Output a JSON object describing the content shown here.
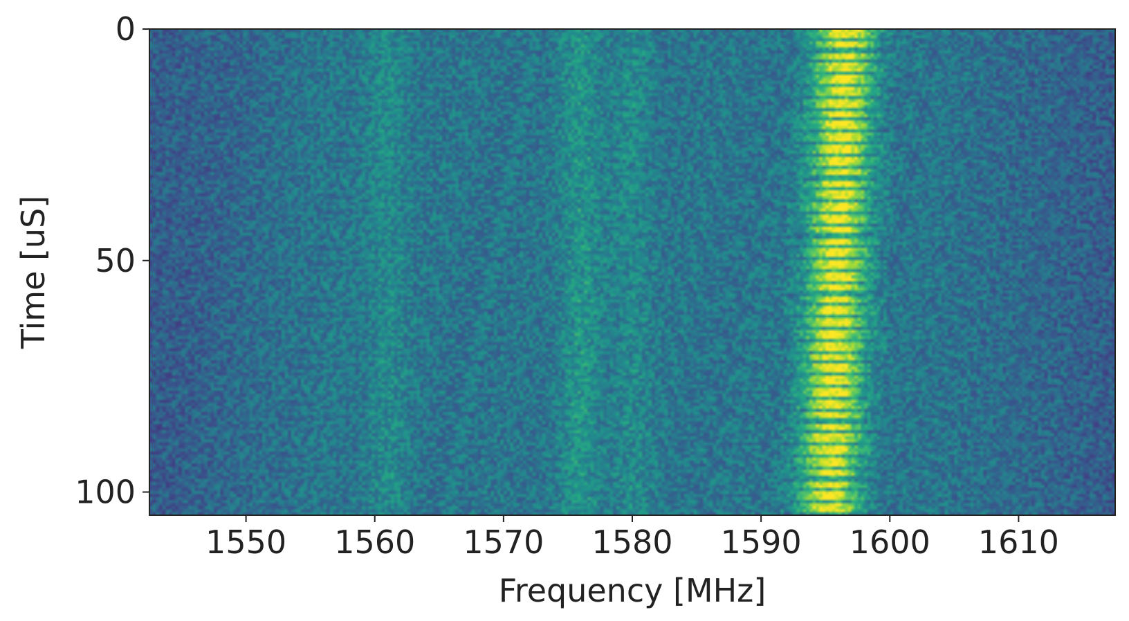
{
  "chart_data": {
    "type": "heatmap",
    "title": "",
    "xlabel": "Frequency [MHz]",
    "ylabel": "Time [uS]",
    "xlim": [
      1542.5,
      1617.5
    ],
    "ylim": [
      105,
      0
    ],
    "x_ticks": [
      1550,
      1560,
      1570,
      1580,
      1590,
      1600,
      1610
    ],
    "y_ticks": [
      0,
      50,
      100
    ],
    "x_tick_labels": [
      "1550",
      "1560",
      "1570",
      "1580",
      "1590",
      "1600",
      "1610"
    ],
    "y_tick_labels": [
      "0",
      "50",
      "100"
    ],
    "colormap": "viridis",
    "grid": false,
    "legend": "none",
    "features": [
      {
        "kind": "pulsed-band",
        "freq_center_mhz": 1596.5,
        "freq_width_mhz": 5,
        "period_us": 2.5,
        "intensity": "high",
        "drift": "slight tilt toward lower frequency at later time"
      },
      {
        "kind": "faint-band",
        "freq_center_mhz": 1561,
        "intensity": "low"
      },
      {
        "kind": "faint-band",
        "freq_center_mhz": 1576,
        "intensity": "low-medium"
      },
      {
        "kind": "faint-band",
        "freq_center_mhz": 1580,
        "intensity": "low"
      }
    ]
  }
}
